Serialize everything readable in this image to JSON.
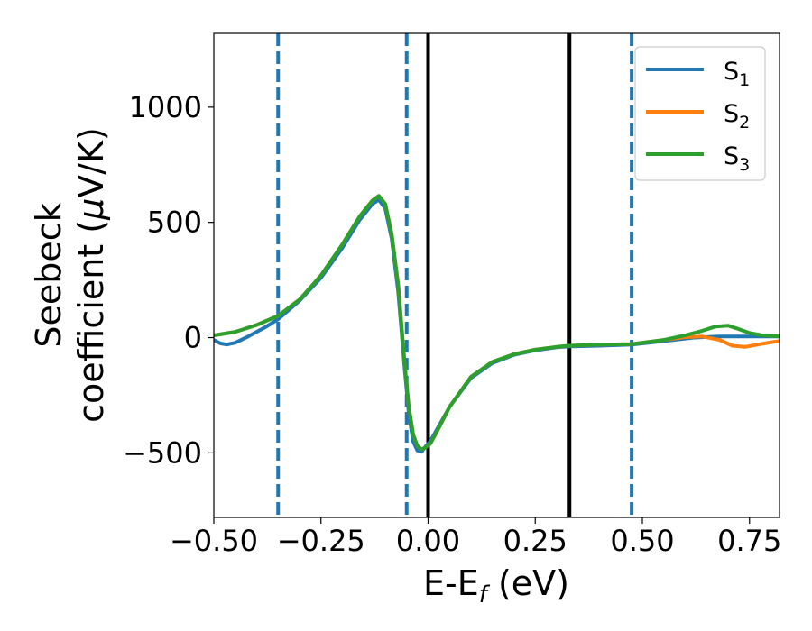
{
  "chart_data": {
    "type": "line",
    "xlabel_main": "E-E",
    "xlabel_sub": "f",
    "xlabel_unit": " (eV)",
    "ylabel_line1": "Seebeck",
    "ylabel_line2_prefix": "coefficient  (",
    "ylabel_line2_mu": "μ",
    "ylabel_line2_suffix": "V/K)",
    "xlim": [
      -0.5,
      0.82
    ],
    "ylim": [
      -780,
      1320
    ],
    "xticks": [
      -0.5,
      -0.25,
      0.0,
      0.25,
      0.5,
      0.75
    ],
    "xtick_labels": [
      "−0.50",
      "−0.25",
      "0.00",
      "0.25",
      "0.50",
      "0.75"
    ],
    "yticks": [
      -500,
      0,
      500,
      1000
    ],
    "ytick_labels": [
      "−500",
      "0",
      "500",
      "1000"
    ],
    "legend_position": "top-right",
    "vlines_dashed": [
      -0.35,
      -0.05,
      0.475
    ],
    "vlines_solid": [
      0.0,
      0.33
    ],
    "vline_dashed_color": "#1f77b4",
    "vline_solid_color": "#000000",
    "series": [
      {
        "name": "S",
        "sub": "1",
        "color": "#1f77b4",
        "x": [
          -0.5,
          -0.485,
          -0.47,
          -0.45,
          -0.42,
          -0.38,
          -0.35,
          -0.3,
          -0.25,
          -0.2,
          -0.16,
          -0.13,
          -0.115,
          -0.1,
          -0.085,
          -0.07,
          -0.055,
          -0.045,
          -0.035,
          -0.025,
          -0.015,
          -0.005,
          0.005,
          0.02,
          0.05,
          0.1,
          0.15,
          0.2,
          0.25,
          0.3,
          0.33,
          0.4,
          0.475,
          0.55,
          0.62,
          0.68,
          0.72,
          0.76,
          0.8,
          0.82
        ],
        "y": [
          -10,
          -25,
          -30,
          -22,
          5,
          45,
          80,
          160,
          260,
          390,
          510,
          580,
          598,
          560,
          430,
          200,
          -130,
          -330,
          -450,
          -490,
          -495,
          -470,
          -450,
          -400,
          -300,
          -175,
          -110,
          -75,
          -55,
          -42,
          -38,
          -35,
          -30,
          -15,
          0,
          5,
          5,
          5,
          5,
          5
        ]
      },
      {
        "name": "S",
        "sub": "2",
        "color": "#ff7f0e",
        "x": [
          -0.5,
          -0.45,
          -0.4,
          -0.35,
          -0.3,
          -0.25,
          -0.2,
          -0.16,
          -0.13,
          -0.115,
          -0.1,
          -0.085,
          -0.07,
          -0.055,
          -0.045,
          -0.035,
          -0.025,
          -0.015,
          -0.005,
          0.005,
          0.02,
          0.05,
          0.1,
          0.15,
          0.2,
          0.25,
          0.3,
          0.33,
          0.4,
          0.475,
          0.55,
          0.6,
          0.64,
          0.68,
          0.71,
          0.74,
          0.77,
          0.8,
          0.82
        ],
        "y": [
          10,
          25,
          55,
          95,
          165,
          270,
          405,
          525,
          595,
          615,
          580,
          450,
          230,
          -110,
          -300,
          -420,
          -470,
          -485,
          -475,
          -460,
          -410,
          -300,
          -170,
          -105,
          -72,
          -52,
          -40,
          -35,
          -30,
          -28,
          -10,
          2,
          5,
          -10,
          -35,
          -40,
          -30,
          -20,
          -15
        ]
      },
      {
        "name": "S",
        "sub": "3",
        "color": "#2ca02c",
        "x": [
          -0.5,
          -0.45,
          -0.4,
          -0.35,
          -0.3,
          -0.25,
          -0.2,
          -0.16,
          -0.13,
          -0.115,
          -0.1,
          -0.085,
          -0.07,
          -0.055,
          -0.045,
          -0.035,
          -0.025,
          -0.015,
          -0.005,
          0.005,
          0.02,
          0.05,
          0.1,
          0.15,
          0.2,
          0.25,
          0.3,
          0.33,
          0.4,
          0.475,
          0.55,
          0.6,
          0.64,
          0.67,
          0.7,
          0.72,
          0.75,
          0.78,
          0.82
        ],
        "y": [
          10,
          25,
          55,
          95,
          165,
          270,
          405,
          525,
          595,
          615,
          580,
          450,
          230,
          -110,
          -300,
          -420,
          -470,
          -485,
          -475,
          -460,
          -410,
          -300,
          -170,
          -105,
          -72,
          -52,
          -40,
          -35,
          -30,
          -28,
          -10,
          10,
          30,
          48,
          52,
          40,
          20,
          10,
          5
        ]
      }
    ]
  }
}
